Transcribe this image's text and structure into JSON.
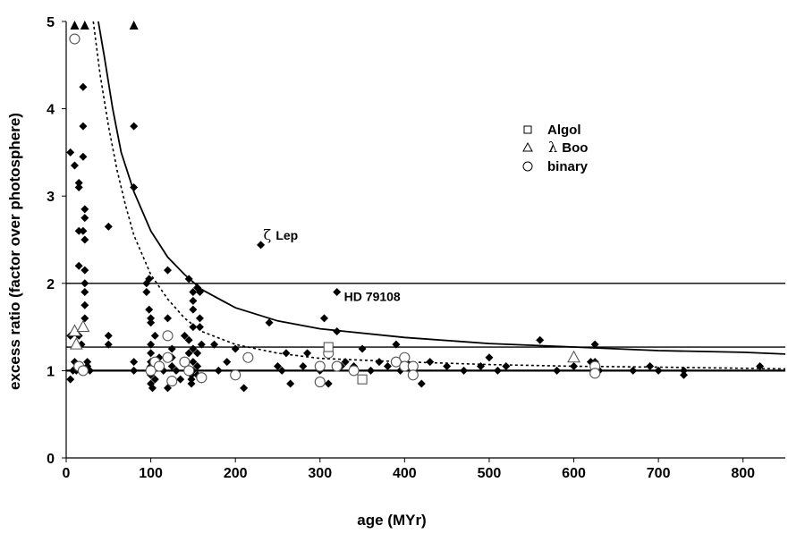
{
  "chart_data": {
    "type": "scatter",
    "xlabel": "age (MYr)",
    "ylabel": "excess ratio (factor over photosphere)",
    "xlim": [
      0,
      850
    ],
    "ylim": [
      0,
      5
    ],
    "xticks": [
      "0",
      "100",
      "200",
      "300",
      "400",
      "500",
      "600",
      "700",
      "800"
    ],
    "yticks": [
      "0",
      "1",
      "2",
      "3",
      "4",
      "5"
    ],
    "grid": false,
    "legend_position": "upper-right",
    "legend": [
      {
        "symbol": "square",
        "label": "Algol"
      },
      {
        "symbol": "triangle",
        "label_greek": "λ",
        "label": "Boo"
      },
      {
        "symbol": "circle",
        "label": "binary"
      }
    ],
    "annotations": [
      {
        "greek": "ζ",
        "text": "Lep",
        "x": 230,
        "y": 2.44
      },
      {
        "text": "HD 79108",
        "x": 320,
        "y": 1.9
      }
    ],
    "reference_lines": [
      {
        "y": 1.0,
        "style": "solid-thick"
      },
      {
        "y": 1.27,
        "style": "solid"
      },
      {
        "y": 2.0,
        "style": "solid"
      }
    ],
    "curves": [
      {
        "style": "solid",
        "points": [
          [
            38,
            5
          ],
          [
            45,
            4.6
          ],
          [
            55,
            4.0
          ],
          [
            65,
            3.5
          ],
          [
            80,
            3.05
          ],
          [
            100,
            2.6
          ],
          [
            120,
            2.3
          ],
          [
            140,
            2.1
          ],
          [
            160,
            1.93
          ],
          [
            200,
            1.72
          ],
          [
            250,
            1.57
          ],
          [
            300,
            1.48
          ],
          [
            400,
            1.38
          ],
          [
            500,
            1.31
          ],
          [
            600,
            1.27
          ],
          [
            700,
            1.23
          ],
          [
            800,
            1.21
          ],
          [
            850,
            1.19
          ]
        ]
      },
      {
        "style": "dotted",
        "points": [
          [
            32,
            5
          ],
          [
            40,
            4.4
          ],
          [
            50,
            3.8
          ],
          [
            60,
            3.3
          ],
          [
            70,
            2.9
          ],
          [
            80,
            2.55
          ],
          [
            100,
            2.1
          ],
          [
            120,
            1.82
          ],
          [
            140,
            1.6
          ],
          [
            160,
            1.45
          ],
          [
            200,
            1.3
          ],
          [
            250,
            1.2
          ],
          [
            300,
            1.14
          ],
          [
            400,
            1.1
          ],
          [
            500,
            1.07
          ],
          [
            600,
            1.05
          ],
          [
            700,
            1.04
          ],
          [
            850,
            1.02
          ]
        ]
      }
    ],
    "series": [
      {
        "symbol": "diamond",
        "points": [
          [
            5,
            3.5
          ],
          [
            5,
            1.4
          ],
          [
            5,
            0.9
          ],
          [
            8,
            1.0
          ],
          [
            10,
            3.35
          ],
          [
            10,
            1.1
          ],
          [
            12,
            1.0
          ],
          [
            15,
            3.15
          ],
          [
            15,
            3.1
          ],
          [
            15,
            2.6
          ],
          [
            15,
            2.2
          ],
          [
            15,
            1.4
          ],
          [
            18,
            1.3
          ],
          [
            20,
            4.25
          ],
          [
            20,
            3.8
          ],
          [
            20,
            3.45
          ],
          [
            20,
            2.6
          ],
          [
            22,
            2.85
          ],
          [
            22,
            2.75
          ],
          [
            22,
            2.5
          ],
          [
            22,
            2.15
          ],
          [
            22,
            2.0
          ],
          [
            22,
            1.9
          ],
          [
            22,
            1.75
          ],
          [
            22,
            1.6
          ],
          [
            25,
            1.1
          ],
          [
            25,
            1.05
          ],
          [
            28,
            1.0
          ],
          [
            50,
            2.65
          ],
          [
            50,
            1.4
          ],
          [
            50,
            1.3
          ],
          [
            80,
            3.8
          ],
          [
            80,
            3.1
          ],
          [
            80,
            1.1
          ],
          [
            80,
            1.0
          ],
          [
            95,
            2.0
          ],
          [
            95,
            1.9
          ],
          [
            98,
            2.05
          ],
          [
            98,
            1.7
          ],
          [
            100,
            1.6
          ],
          [
            100,
            1.55
          ],
          [
            100,
            1.3
          ],
          [
            100,
            1.2
          ],
          [
            100,
            1.1
          ],
          [
            100,
            1.05
          ],
          [
            100,
            1.0
          ],
          [
            100,
            0.95
          ],
          [
            100,
            0.85
          ],
          [
            102,
            0.8
          ],
          [
            105,
            1.4
          ],
          [
            105,
            0.9
          ],
          [
            110,
            1.15
          ],
          [
            110,
            1.05
          ],
          [
            115,
            1.0
          ],
          [
            120,
            2.15
          ],
          [
            120,
            1.6
          ],
          [
            120,
            0.8
          ],
          [
            125,
            1.25
          ],
          [
            125,
            1.15
          ],
          [
            125,
            1.05
          ],
          [
            130,
            1.0
          ],
          [
            135,
            0.9
          ],
          [
            140,
            1.4
          ],
          [
            140,
            1.1
          ],
          [
            145,
            2.05
          ],
          [
            145,
            1.35
          ],
          [
            145,
            1.2
          ],
          [
            145,
            1.0
          ],
          [
            148,
            0.95
          ],
          [
            148,
            0.9
          ],
          [
            148,
            0.85
          ],
          [
            150,
            1.9
          ],
          [
            150,
            1.8
          ],
          [
            150,
            1.7
          ],
          [
            150,
            1.5
          ],
          [
            150,
            1.25
          ],
          [
            150,
            1.1
          ],
          [
            150,
            1.0
          ],
          [
            155,
            1.95
          ],
          [
            155,
            1.2
          ],
          [
            155,
            1.05
          ],
          [
            155,
            0.95
          ],
          [
            158,
            1.9
          ],
          [
            158,
            1.6
          ],
          [
            158,
            1.5
          ],
          [
            160,
            1.3
          ],
          [
            160,
            0.9
          ],
          [
            175,
            1.3
          ],
          [
            180,
            1.0
          ],
          [
            190,
            1.1
          ],
          [
            200,
            1.25
          ],
          [
            210,
            0.8
          ],
          [
            230,
            2.44
          ],
          [
            240,
            1.55
          ],
          [
            250,
            1.05
          ],
          [
            255,
            1.0
          ],
          [
            260,
            1.2
          ],
          [
            265,
            0.85
          ],
          [
            280,
            1.05
          ],
          [
            285,
            1.2
          ],
          [
            300,
            1.0
          ],
          [
            305,
            1.6
          ],
          [
            310,
            0.85
          ],
          [
            320,
            1.9
          ],
          [
            320,
            1.45
          ],
          [
            325,
            1.05
          ],
          [
            330,
            1.1
          ],
          [
            340,
            1.05
          ],
          [
            350,
            1.25
          ],
          [
            360,
            1.0
          ],
          [
            370,
            1.1
          ],
          [
            380,
            1.05
          ],
          [
            390,
            1.3
          ],
          [
            395,
            1.0
          ],
          [
            400,
            1.15
          ],
          [
            405,
            1.05
          ],
          [
            420,
            0.85
          ],
          [
            430,
            1.1
          ],
          [
            450,
            1.05
          ],
          [
            470,
            1.0
          ],
          [
            490,
            1.05
          ],
          [
            500,
            1.15
          ],
          [
            510,
            1.0
          ],
          [
            520,
            1.05
          ],
          [
            560,
            1.35
          ],
          [
            580,
            1.0
          ],
          [
            600,
            1.05
          ],
          [
            620,
            1.1
          ],
          [
            625,
            1.3
          ],
          [
            625,
            1.1
          ],
          [
            630,
            1.0
          ],
          [
            670,
            1.0
          ],
          [
            690,
            1.05
          ],
          [
            700,
            1.0
          ],
          [
            730,
            1.0
          ],
          [
            730,
            0.95
          ],
          [
            820,
            1.05
          ]
        ]
      },
      {
        "symbol": "filled-triangle",
        "points": [
          [
            10,
            5
          ],
          [
            22,
            5
          ],
          [
            80,
            5
          ]
        ]
      },
      {
        "symbol": "circle",
        "points": [
          [
            10,
            4.8
          ],
          [
            15,
            1.05
          ],
          [
            20,
            1.0
          ],
          [
            100,
            1.0
          ],
          [
            105,
            1.1
          ],
          [
            110,
            1.05
          ],
          [
            120,
            1.4
          ],
          [
            120,
            1.15
          ],
          [
            125,
            0.88
          ],
          [
            140,
            1.1
          ],
          [
            145,
            1.0
          ],
          [
            160,
            0.92
          ],
          [
            200,
            0.95
          ],
          [
            215,
            1.15
          ],
          [
            300,
            1.05
          ],
          [
            300,
            0.87
          ],
          [
            310,
            1.2
          ],
          [
            320,
            1.05
          ],
          [
            340,
            1.0
          ],
          [
            390,
            1.1
          ],
          [
            400,
            1.15
          ],
          [
            400,
            1.05
          ],
          [
            410,
            1.05
          ],
          [
            410,
            0.95
          ],
          [
            625,
            1.05
          ],
          [
            625,
            0.97
          ]
        ]
      },
      {
        "symbol": "square",
        "points": [
          [
            310,
            1.27
          ],
          [
            350,
            0.9
          ]
        ]
      },
      {
        "symbol": "triangle",
        "points": [
          [
            10,
            1.45
          ],
          [
            12,
            1.3
          ],
          [
            20,
            1.5
          ],
          [
            600,
            1.15
          ]
        ]
      }
    ]
  }
}
